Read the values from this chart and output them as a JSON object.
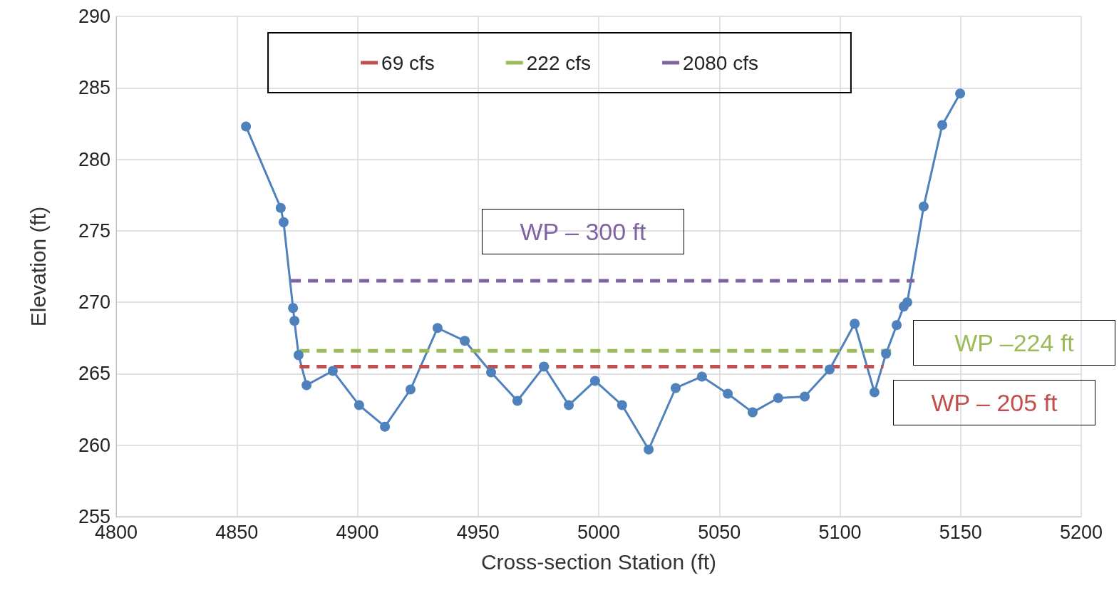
{
  "chart_data": {
    "type": "line",
    "xlabel": "Cross-section Station (ft)",
    "ylabel": "Elevation (ft)",
    "xlim": [
      4800,
      5200
    ],
    "xticks": [
      4800,
      4850,
      4900,
      4950,
      5000,
      5050,
      5100,
      5150,
      5200
    ],
    "ylim": [
      255,
      290
    ],
    "yticks": [
      255,
      260,
      265,
      270,
      275,
      280,
      285,
      290
    ],
    "grid": true,
    "legend": "top",
    "marker": "circle",
    "series": [
      {
        "color": "#4f81bd",
        "x": [
          4853.8,
          4868.2,
          4869.4,
          4873.3,
          4873.9,
          4875.6,
          4878.9,
          4889.8,
          4900.7,
          4911.4,
          4922.0,
          4933.2,
          4944.5,
          4955.4,
          4966.3,
          4977.3,
          4987.6,
          4998.5,
          5009.7,
          5020.7,
          5031.9,
          5042.8,
          5053.5,
          5063.8,
          5074.4,
          5085.4,
          5095.7,
          5106.1,
          5114.3,
          5119.1,
          5123.5,
          5126.4,
          5127.9,
          5134.7,
          5142.4,
          5149.8
        ],
        "values": [
          282.3,
          276.6,
          275.6,
          269.6,
          268.7,
          266.3,
          264.2,
          265.2,
          262.8,
          261.3,
          263.9,
          268.2,
          267.3,
          265.1,
          263.1,
          265.5,
          262.8,
          264.5,
          262.8,
          259.7,
          264.0,
          264.8,
          263.6,
          262.3,
          263.3,
          263.4,
          265.3,
          268.5,
          263.7,
          266.4,
          268.4,
          269.7,
          270.0,
          276.7,
          282.4,
          284.6
        ]
      },
      {
        "name": "69 cfs",
        "color": "#c0504d",
        "x": [
          4876,
          5118
        ],
        "values": [
          265.5,
          265.5
        ],
        "marker": "none",
        "line_style": "dashed"
      },
      {
        "name": "222 cfs",
        "color": "#9bbb59",
        "x": [
          4876,
          5122.6
        ],
        "values": [
          266.6,
          266.6
        ],
        "marker": "none",
        "line_style": "dashed"
      },
      {
        "name": "2080 cfs",
        "color": "#8064a2",
        "x": [
          4872.4,
          5130.9
        ],
        "values": [
          271.5,
          271.5
        ],
        "marker": "none",
        "line_style": "dashed"
      }
    ],
    "annotations": [
      "WP – 300 ft",
      "WP –224 ft",
      "WP – 205 ft"
    ]
  }
}
